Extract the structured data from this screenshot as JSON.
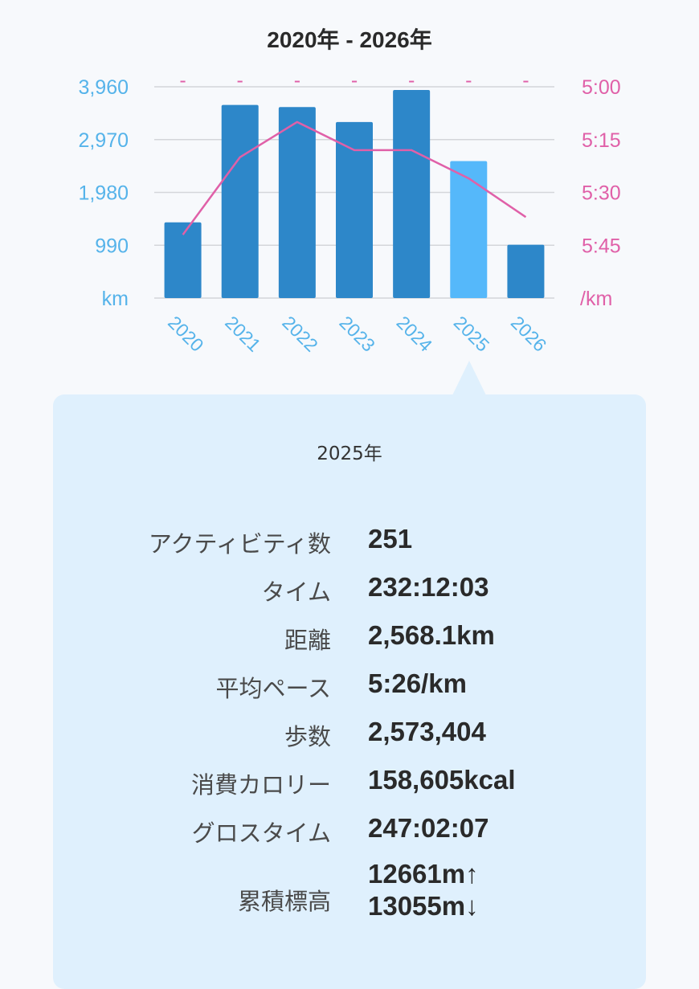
{
  "chart_data": {
    "type": "bar",
    "title": "2020年 - 2026年",
    "categories": [
      "2020",
      "2021",
      "2022",
      "2023",
      "2024",
      "2025",
      "2026"
    ],
    "series": [
      {
        "axis": "left",
        "chart": "bar",
        "values": [
          1420,
          3620,
          3580,
          3300,
          3900,
          2568,
          1000
        ]
      },
      {
        "axis": "right",
        "chart": "line",
        "values": [
          "5:42",
          "5:20",
          "5:10",
          "5:18",
          "5:18",
          "5:26",
          "5:37"
        ]
      }
    ],
    "highlight_index": 5,
    "highlight_color": "#55b8fa",
    "bar_color": "#2d87c9",
    "line_color": "#e060a8",
    "left_axis": {
      "unit": "km",
      "ticks": [
        "990",
        "1,980",
        "2,970",
        "3,960"
      ],
      "ylim": [
        0,
        3960
      ],
      "color": "#55b3ea"
    },
    "right_axis": {
      "unit": "/km",
      "ticks": [
        "5:00",
        "5:15",
        "5:30",
        "5:45"
      ],
      "range_top": "5:00",
      "range_bottom": "6:00",
      "color": "#e060a8"
    },
    "grid": true,
    "no_data_marker": "-"
  },
  "detail": {
    "year": "2025年",
    "stats": [
      {
        "label": "アクティビティ数",
        "value": "251"
      },
      {
        "label": "タイム",
        "value": "232:12:03"
      },
      {
        "label": "距離",
        "value": "2,568.1km"
      },
      {
        "label": "平均ペース",
        "value": "5:26/km"
      },
      {
        "label": "歩数",
        "value": "2,573,404"
      },
      {
        "label": "消費カロリー",
        "value": "158,605kcal"
      },
      {
        "label": "グロスタイム",
        "value": "247:02:07"
      },
      {
        "label": "累積標高",
        "value": "12661m↑",
        "value2": "13055m↓"
      }
    ]
  }
}
